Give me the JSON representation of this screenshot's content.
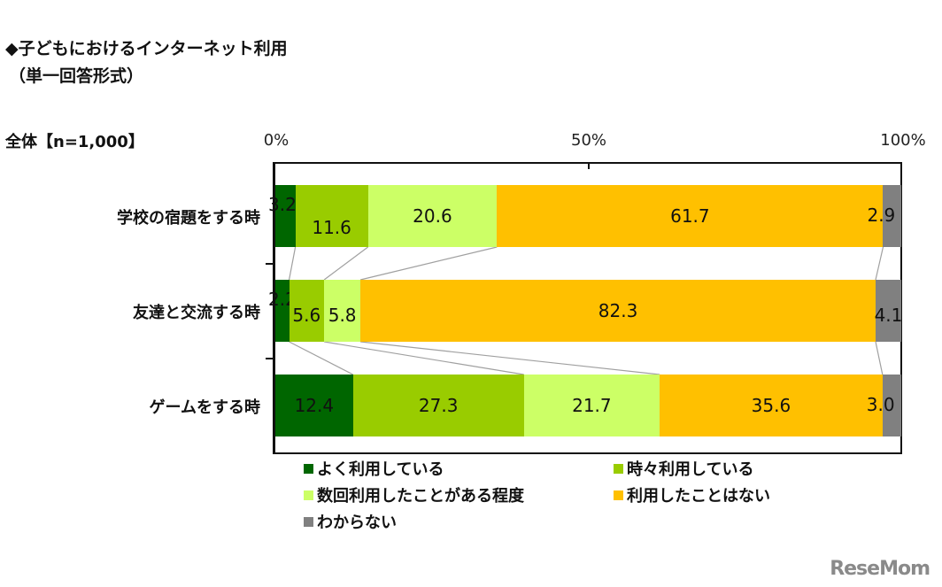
{
  "header": {
    "title": "◆子どもにおけるインターネット利用",
    "subtitle": "（単一回答形式）",
    "sample": "全体【n=1,000】"
  },
  "axis": {
    "ticks": [
      "0%",
      "50%",
      "100%"
    ]
  },
  "logo": "ReseMom",
  "chart_data": {
    "type": "bar",
    "orientation": "horizontal-stacked-100",
    "title": "◆子どもにおけるインターネット利用（単一回答形式）",
    "subtitle": "全体【n=1,000】",
    "xlabel": "",
    "ylabel": "",
    "xlim": [
      0,
      100
    ],
    "x_ticks": [
      "0%",
      "50%",
      "100%"
    ],
    "categories": [
      "学校の宿題をする時",
      "友達と交流する時",
      "ゲームをする時"
    ],
    "series": [
      {
        "name": "よく利用している",
        "color": "#006600",
        "values": [
          3.2,
          2.2,
          12.4
        ],
        "labels": [
          "3.2",
          "2.2",
          "12.4"
        ]
      },
      {
        "name": "時々利用している",
        "color": "#99CC00",
        "values": [
          11.6,
          5.6,
          27.3
        ],
        "labels": [
          "11.6",
          "5.6",
          "27.3"
        ]
      },
      {
        "name": "数回利用したことがある程度",
        "color": "#CCFF66",
        "values": [
          20.6,
          5.8,
          21.7
        ],
        "labels": [
          "20.6",
          "5.8",
          "21.7"
        ]
      },
      {
        "name": "利用したことはない",
        "color": "#FFC000",
        "values": [
          61.7,
          82.3,
          35.6
        ],
        "labels": [
          "61.7",
          "82.3",
          "35.6"
        ]
      },
      {
        "name": "わからない",
        "color": "#808080",
        "values": [
          2.9,
          4.1,
          3.0
        ],
        "labels": [
          "2.9",
          "4.1",
          "3.0"
        ]
      }
    ],
    "legend_position": "bottom",
    "grid": false,
    "series_connector_lines": true
  }
}
